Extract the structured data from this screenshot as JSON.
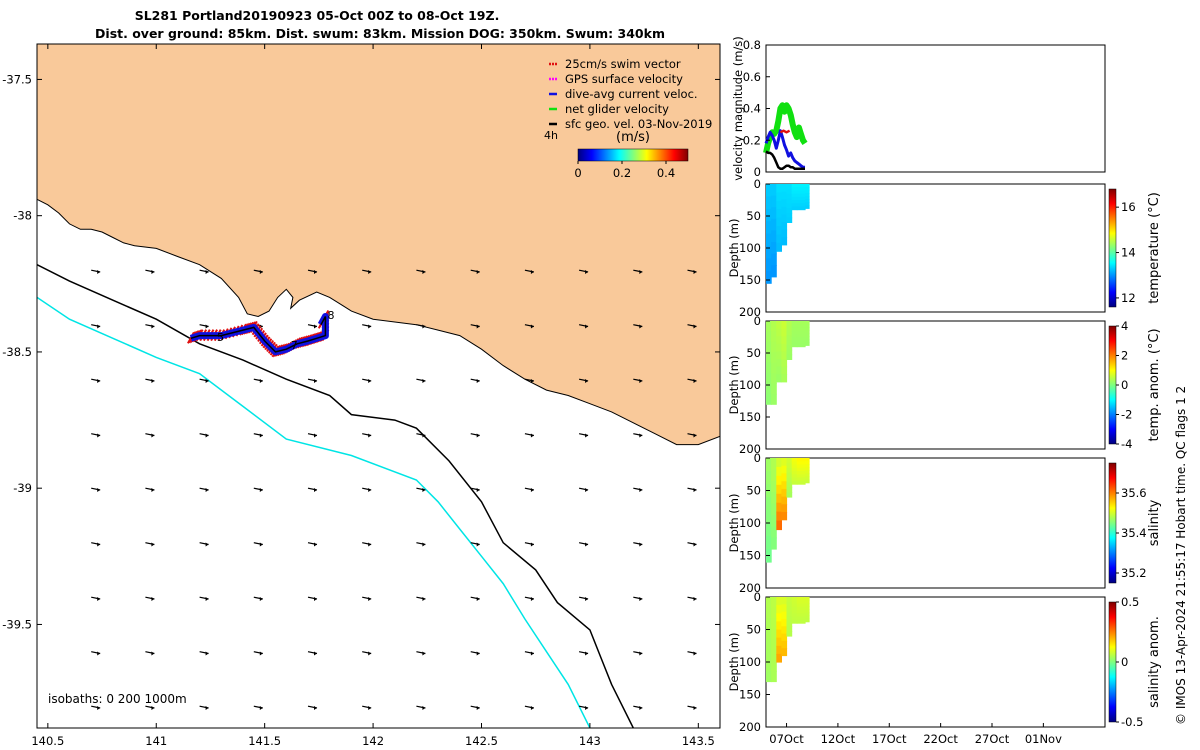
{
  "header": {
    "title_line1": "SL281 Portland20190923 05-Oct 00Z to 08-Oct 19Z.",
    "title_line2": "Dist. over ground: 85km. Dist. swum: 83km. Mission DOG: 350km. Swum: 340km"
  },
  "colors": {
    "land": "#f9c99a",
    "isobath_200": "#00e5e5",
    "isobath_1000": "#000000",
    "swim_vector": "#e01010",
    "gps_velocity": "#ff00ff",
    "dive_avg": "#1010e0",
    "net_velocity": "#10e010",
    "sfc_geo": "#000000"
  },
  "chart_data": [
    {
      "id": "map",
      "type": "scatter",
      "title": "SL281 Portland20190923 05-Oct 00Z to 08-Oct 19Z.",
      "xlim": [
        140.45,
        143.6
      ],
      "ylim": [
        -39.88,
        -37.37
      ],
      "x_ticks": [
        "140.5",
        "141",
        "141.5",
        "142",
        "142.5",
        "143",
        "143.5"
      ],
      "x_tick_values": [
        140.5,
        141,
        141.5,
        142,
        142.5,
        143,
        143.5
      ],
      "y_ticks": [
        "-37.5",
        "-38",
        "-38.5",
        "-39",
        "-39.5"
      ],
      "y_tick_values": [
        -37.5,
        -38,
        -38.5,
        -39,
        -39.5
      ],
      "legend": {
        "placement": "top-right",
        "entries": [
          {
            "label": "25cm/s swim vector",
            "color": "#e01010"
          },
          {
            "label": "GPS surface velocity",
            "color": "#ff00ff"
          },
          {
            "label": "dive-avg current veloc.",
            "color": "#1010e0"
          },
          {
            "label": "net glider velocity",
            "color": "#10e010"
          },
          {
            "label": "sfc geo. vel. 03-Nov-2019",
            "color": "#000000"
          }
        ],
        "interval_label": "4h"
      },
      "colorbar": {
        "label": "(m/s)",
        "ticks": [
          "0",
          "0.2",
          "0.4"
        ],
        "range": [
          0,
          0.5
        ]
      },
      "isobath_label": "isobaths: 0   200  1000m",
      "day_labels": [
        {
          "text": "5",
          "lon": 141.28,
          "lat": -38.46
        },
        {
          "text": "7",
          "lon": 141.62,
          "lat": -38.49
        },
        {
          "text": "8",
          "lon": 141.79,
          "lat": -38.38
        }
      ],
      "coastline": [
        [
          140.45,
          -37.94
        ],
        [
          140.5,
          -37.96
        ],
        [
          140.55,
          -37.99
        ],
        [
          140.6,
          -38.03
        ],
        [
          140.65,
          -38.05
        ],
        [
          140.7,
          -38.05
        ],
        [
          140.75,
          -38.06
        ],
        [
          140.8,
          -38.08
        ],
        [
          140.85,
          -38.1
        ],
        [
          140.9,
          -38.11
        ],
        [
          141.0,
          -38.12
        ],
        [
          141.1,
          -38.15
        ],
        [
          141.2,
          -38.18
        ],
        [
          141.3,
          -38.23
        ],
        [
          141.38,
          -38.3
        ],
        [
          141.42,
          -38.36
        ],
        [
          141.47,
          -38.37
        ],
        [
          141.52,
          -38.35
        ],
        [
          141.56,
          -38.3
        ],
        [
          141.6,
          -38.27
        ],
        [
          141.63,
          -38.3
        ],
        [
          141.62,
          -38.34
        ],
        [
          141.66,
          -38.31
        ],
        [
          141.74,
          -38.28
        ],
        [
          141.8,
          -38.3
        ],
        [
          141.86,
          -38.33
        ],
        [
          141.9,
          -38.35
        ],
        [
          142.0,
          -38.38
        ],
        [
          142.1,
          -38.39
        ],
        [
          142.2,
          -38.4
        ],
        [
          142.3,
          -38.42
        ],
        [
          142.4,
          -38.44
        ],
        [
          142.5,
          -38.49
        ],
        [
          142.6,
          -38.55
        ],
        [
          142.7,
          -38.6
        ],
        [
          142.8,
          -38.64
        ],
        [
          142.9,
          -38.66
        ],
        [
          143.0,
          -38.69
        ],
        [
          143.1,
          -38.72
        ],
        [
          143.2,
          -38.76
        ],
        [
          143.3,
          -38.8
        ],
        [
          143.4,
          -38.84
        ],
        [
          143.5,
          -38.84
        ],
        [
          143.6,
          -38.81
        ],
        [
          143.6,
          -37.37
        ],
        [
          140.45,
          -37.37
        ]
      ],
      "isobath_1000m": [
        [
          140.45,
          -38.18
        ],
        [
          140.6,
          -38.24
        ],
        [
          140.8,
          -38.31
        ],
        [
          141.0,
          -38.38
        ],
        [
          141.2,
          -38.47
        ],
        [
          141.4,
          -38.53
        ],
        [
          141.6,
          -38.6
        ],
        [
          141.8,
          -38.66
        ],
        [
          141.9,
          -38.73
        ],
        [
          142.1,
          -38.75
        ],
        [
          142.2,
          -38.78
        ],
        [
          142.35,
          -38.9
        ],
        [
          142.5,
          -39.05
        ],
        [
          142.6,
          -39.2
        ],
        [
          142.75,
          -39.3
        ],
        [
          142.85,
          -39.42
        ],
        [
          143.0,
          -39.52
        ],
        [
          143.05,
          -39.62
        ],
        [
          143.1,
          -39.72
        ],
        [
          143.2,
          -39.88
        ]
      ],
      "isobath_200m": [
        [
          140.45,
          -38.3
        ],
        [
          140.6,
          -38.38
        ],
        [
          140.8,
          -38.45
        ],
        [
          141.0,
          -38.52
        ],
        [
          141.2,
          -38.58
        ],
        [
          141.4,
          -38.7
        ],
        [
          141.6,
          -38.82
        ],
        [
          141.9,
          -38.88
        ],
        [
          142.2,
          -38.97
        ],
        [
          142.3,
          -39.05
        ],
        [
          142.4,
          -39.15
        ],
        [
          142.5,
          -39.25
        ],
        [
          142.6,
          -39.35
        ],
        [
          142.7,
          -39.48
        ],
        [
          142.8,
          -39.6
        ],
        [
          142.9,
          -39.72
        ],
        [
          143.0,
          -39.88
        ]
      ],
      "glider_track": [
        [
          141.16,
          -38.45
        ],
        [
          141.2,
          -38.44
        ],
        [
          141.3,
          -38.44
        ],
        [
          141.4,
          -38.42
        ],
        [
          141.45,
          -38.41
        ],
        [
          141.5,
          -38.46
        ],
        [
          141.55,
          -38.5
        ],
        [
          141.6,
          -38.49
        ],
        [
          141.65,
          -38.47
        ],
        [
          141.7,
          -38.46
        ],
        [
          141.74,
          -38.45
        ],
        [
          141.78,
          -38.44
        ],
        [
          141.78,
          -38.37
        ],
        [
          141.76,
          -38.4
        ]
      ],
      "current_arrows": {
        "lons": [
          140.7,
          140.95,
          141.2,
          141.45,
          141.7,
          141.95,
          142.2,
          142.45,
          142.7,
          142.95,
          143.2,
          143.45
        ],
        "lats": [
          -38.2,
          -38.4,
          -38.6,
          -38.8,
          -39.0,
          -39.2,
          -39.4,
          -39.6,
          -39.8
        ],
        "u": 0.05,
        "v": -0.01
      }
    },
    {
      "id": "velocity",
      "type": "line",
      "ylabel": "velocity magnitude (m/s)",
      "ylim": [
        0,
        0.8
      ],
      "y_ticks": [
        "0",
        "0.2",
        "0.4",
        "0.6",
        "0.8"
      ],
      "y_tick_values": [
        0,
        0.2,
        0.4,
        0.6,
        0.8
      ],
      "x_range_days": [
        5,
        38
      ],
      "series": [
        {
          "color": "#10e010",
          "x": [
            5,
            5.2,
            5.4,
            5.6,
            5.8,
            6.0,
            6.2,
            6.4,
            6.6,
            6.8,
            7.0,
            7.2,
            7.4,
            7.6,
            7.8,
            8.0,
            8.2,
            8.4,
            8.6,
            8.8
          ],
          "y": [
            0.12,
            0.18,
            0.22,
            0.25,
            0.24,
            0.26,
            0.32,
            0.4,
            0.42,
            0.38,
            0.42,
            0.4,
            0.36,
            0.3,
            0.25,
            0.22,
            0.28,
            0.24,
            0.2,
            0.18
          ]
        },
        {
          "color": "#1010e0",
          "x": [
            5,
            5.2,
            5.4,
            5.6,
            5.8,
            6.0,
            6.2,
            6.4,
            6.6,
            6.8,
            7.0,
            7.2,
            7.4,
            7.6,
            7.8,
            8.0,
            8.2,
            8.4,
            8.6,
            8.8
          ],
          "y": [
            0.18,
            0.22,
            0.25,
            0.23,
            0.2,
            0.15,
            0.2,
            0.26,
            0.22,
            0.17,
            0.14,
            0.1,
            0.12,
            0.09,
            0.07,
            0.06,
            0.05,
            0.04,
            0.03,
            0.03
          ]
        },
        {
          "color": "#000000",
          "x": [
            5,
            5.2,
            5.4,
            5.6,
            5.8,
            6.0,
            6.2,
            6.4,
            6.6,
            6.8,
            7.0,
            7.2,
            7.4,
            7.6,
            7.8,
            8.0,
            8.2,
            8.4,
            8.6,
            8.8
          ],
          "y": [
            0.13,
            0.12,
            0.12,
            0.11,
            0.09,
            0.06,
            0.03,
            0.02,
            0.02,
            0.03,
            0.04,
            0.04,
            0.03,
            0.03,
            0.02,
            0.02,
            0.02,
            0.02,
            0.02,
            0.02
          ]
        },
        {
          "color": "#e01010",
          "x": [
            6.4,
            6.7,
            7.0,
            7.3
          ],
          "y": [
            0.25,
            0.26,
            0.25,
            0.26
          ]
        }
      ]
    },
    {
      "id": "temperature",
      "type": "heatmap",
      "ylabel": "Depth (m)",
      "ylim": [
        200,
        0
      ],
      "y_ticks": [
        "0",
        "50",
        "100",
        "150",
        "200"
      ],
      "y_tick_values": [
        0,
        50,
        100,
        150,
        200
      ],
      "x_range_days": [
        5,
        38
      ],
      "cbar_label": "temperature (°C)",
      "cbar_ticks": [
        "12",
        "14",
        "16"
      ],
      "cbar_tick_values": [
        12,
        14,
        16
      ],
      "cbar_range": [
        11.6,
        16.8
      ],
      "profiles": [
        {
          "x": 5.0,
          "bottom": 155,
          "top_value": 13.3,
          "bottom_value": 13.0
        },
        {
          "x": 5.5,
          "bottom": 145,
          "top_value": 13.3,
          "bottom_value": 13.0
        },
        {
          "x": 6.0,
          "bottom": 105,
          "top_value": 13.4,
          "bottom_value": 13.2
        },
        {
          "x": 6.5,
          "bottom": 95,
          "top_value": 13.4,
          "bottom_value": 13.2
        },
        {
          "x": 7.0,
          "bottom": 60,
          "top_value": 13.4,
          "bottom_value": 13.3
        },
        {
          "x": 7.5,
          "bottom": 40,
          "top_value": 13.5,
          "bottom_value": 13.3
        },
        {
          "x": 8.0,
          "bottom": 40,
          "top_value": 13.5,
          "bottom_value": 13.3
        },
        {
          "x": 8.8,
          "bottom": 38,
          "top_value": 13.5,
          "bottom_value": 13.3
        }
      ]
    },
    {
      "id": "temp_anom",
      "type": "heatmap",
      "ylabel": "Depth (m)",
      "ylim": [
        200,
        0
      ],
      "y_ticks": [
        "0",
        "50",
        "100",
        "150",
        "200"
      ],
      "y_tick_values": [
        0,
        50,
        100,
        150,
        200
      ],
      "x_range_days": [
        5,
        38
      ],
      "cbar_label": "temp. anom. (°C)",
      "cbar_ticks": [
        "-4",
        "-2",
        "0",
        "2",
        "4"
      ],
      "cbar_tick_values": [
        -4,
        -2,
        0,
        2,
        4
      ],
      "cbar_range": [
        -4,
        4
      ],
      "profiles": [
        {
          "x": 5.0,
          "bottom": 130,
          "top_value": 0.3,
          "bottom_value": 0.1
        },
        {
          "x": 5.5,
          "bottom": 130,
          "top_value": 0.4,
          "bottom_value": 0.2
        },
        {
          "x": 6.0,
          "bottom": 95,
          "top_value": 0.5,
          "bottom_value": 0.2
        },
        {
          "x": 6.5,
          "bottom": 95,
          "top_value": 0.6,
          "bottom_value": 0.3
        },
        {
          "x": 7.0,
          "bottom": 60,
          "top_value": 0.4,
          "bottom_value": 0.2
        },
        {
          "x": 7.5,
          "bottom": 40,
          "top_value": 0.3,
          "bottom_value": 0.2
        },
        {
          "x": 8.0,
          "bottom": 40,
          "top_value": 0.3,
          "bottom_value": 0.2
        },
        {
          "x": 8.8,
          "bottom": 38,
          "top_value": 0.3,
          "bottom_value": 0.2
        }
      ]
    },
    {
      "id": "salinity",
      "type": "heatmap",
      "ylabel": "Depth (m)",
      "ylim": [
        200,
        0
      ],
      "y_ticks": [
        "0",
        "50",
        "100",
        "150",
        "200"
      ],
      "y_tick_values": [
        0,
        50,
        100,
        150,
        200
      ],
      "x_range_days": [
        5,
        38
      ],
      "cbar_label": "salinity",
      "cbar_ticks": [
        "35.2",
        "35.4",
        "35.6"
      ],
      "cbar_tick_values": [
        35.2,
        35.4,
        35.6
      ],
      "cbar_range": [
        35.15,
        35.75
      ],
      "profiles": [
        {
          "x": 5.0,
          "bottom": 160,
          "top_value": 35.47,
          "bottom_value": 35.44
        },
        {
          "x": 5.5,
          "bottom": 140,
          "top_value": 35.48,
          "bottom_value": 35.45
        },
        {
          "x": 6.0,
          "bottom": 110,
          "top_value": 35.49,
          "bottom_value": 35.62
        },
        {
          "x": 6.5,
          "bottom": 95,
          "top_value": 35.5,
          "bottom_value": 35.6
        },
        {
          "x": 7.0,
          "bottom": 60,
          "top_value": 35.5,
          "bottom_value": 35.47
        },
        {
          "x": 7.5,
          "bottom": 40,
          "top_value": 35.52,
          "bottom_value": 35.49
        },
        {
          "x": 8.0,
          "bottom": 40,
          "top_value": 35.53,
          "bottom_value": 35.49
        },
        {
          "x": 8.8,
          "bottom": 38,
          "top_value": 35.53,
          "bottom_value": 35.49
        }
      ]
    },
    {
      "id": "sal_anom",
      "type": "heatmap",
      "ylabel": "Depth (m)",
      "ylim": [
        200,
        0
      ],
      "y_ticks": [
        "0",
        "50",
        "100",
        "150",
        "200"
      ],
      "y_tick_values": [
        0,
        50,
        100,
        150,
        200
      ],
      "x_range_days": [
        5,
        38
      ],
      "x_ticks": [
        "07Oct",
        "12Oct",
        "17Oct",
        "22Oct",
        "27Oct",
        "01Nov"
      ],
      "x_tick_values": [
        7,
        12,
        17,
        22,
        27,
        32
      ],
      "cbar_label": "salinity anom.",
      "cbar_ticks": [
        "-0.5",
        "0",
        "0.5"
      ],
      "cbar_tick_values": [
        -0.5,
        0,
        0.5
      ],
      "cbar_range": [
        -0.5,
        0.5
      ],
      "profiles": [
        {
          "x": 5.0,
          "bottom": 130,
          "top_value": 0.05,
          "bottom_value": 0.03
        },
        {
          "x": 5.5,
          "bottom": 130,
          "top_value": 0.06,
          "bottom_value": 0.04
        },
        {
          "x": 6.0,
          "bottom": 100,
          "top_value": 0.08,
          "bottom_value": 0.22
        },
        {
          "x": 6.5,
          "bottom": 90,
          "top_value": 0.08,
          "bottom_value": 0.2
        },
        {
          "x": 7.0,
          "bottom": 60,
          "top_value": 0.07,
          "bottom_value": 0.05
        },
        {
          "x": 7.5,
          "bottom": 40,
          "top_value": 0.08,
          "bottom_value": 0.06
        },
        {
          "x": 8.0,
          "bottom": 40,
          "top_value": 0.09,
          "bottom_value": 0.06
        },
        {
          "x": 8.8,
          "bottom": 38,
          "top_value": 0.09,
          "bottom_value": 0.06
        }
      ]
    }
  ],
  "footer": {
    "side_text": "© IMOS 13-Apr-2024 21:55:17 Hobart time. QC flags 1  2"
  }
}
